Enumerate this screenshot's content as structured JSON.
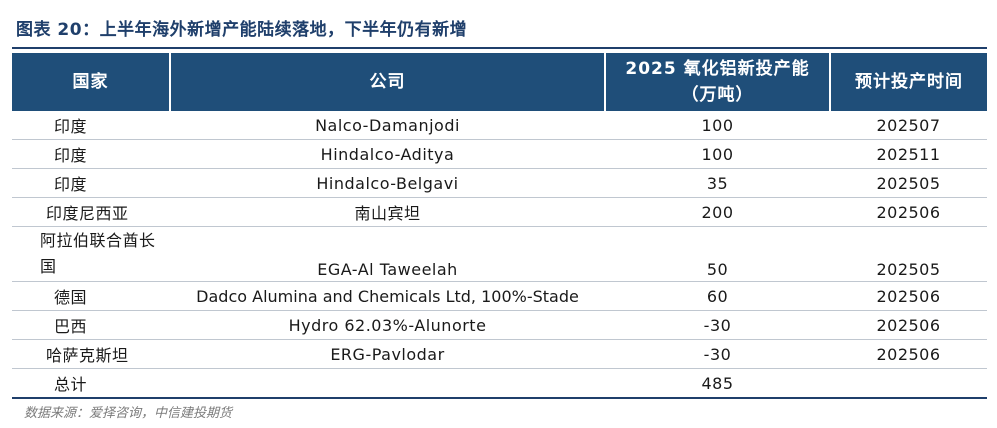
{
  "title": "图表 20：上半年海外新增产能陆续落地，下半年仍有新增",
  "table": {
    "headers": {
      "country": "国家",
      "company": "公司",
      "capacity": "2025 氧化铝新投产能（万吨）",
      "time": "预计投产时间"
    },
    "rows": [
      {
        "country": "印度",
        "company": "Nalco-Damanjodi",
        "capacity": "100",
        "time": "202507"
      },
      {
        "country": "印度",
        "company": "Hindalco-Aditya",
        "capacity": "100",
        "time": "202511"
      },
      {
        "country": "印度",
        "company": "Hindalco-Belgavi",
        "capacity": "35",
        "time": "202505"
      },
      {
        "country": "印度尼西亚",
        "company": "南山宾坦",
        "capacity": "200",
        "time": "202506"
      },
      {
        "country": "阿拉伯联合酋长国",
        "company": "EGA-Al Taweelah",
        "capacity": "50",
        "time": "202505"
      },
      {
        "country": "德国",
        "company": "Dadco Alumina and Chemicals Ltd, 100%-Stade",
        "capacity": "60",
        "time": "202506"
      },
      {
        "country": "巴西",
        "company": "Hydro 62.03%-Alunorte",
        "capacity": "-30",
        "time": "202506"
      },
      {
        "country": "哈萨克斯坦",
        "company": "ERG-Pavlodar",
        "capacity": "-30",
        "time": "202506"
      }
    ],
    "total": {
      "label": "总计",
      "capacity": "485",
      "company": "",
      "time": ""
    }
  },
  "source": "数据来源：爱择咨询，中信建投期货",
  "colors": {
    "header_bg": "#1f4e79",
    "title": "#1f3f6b",
    "row_divider": "#c0c7d0"
  }
}
